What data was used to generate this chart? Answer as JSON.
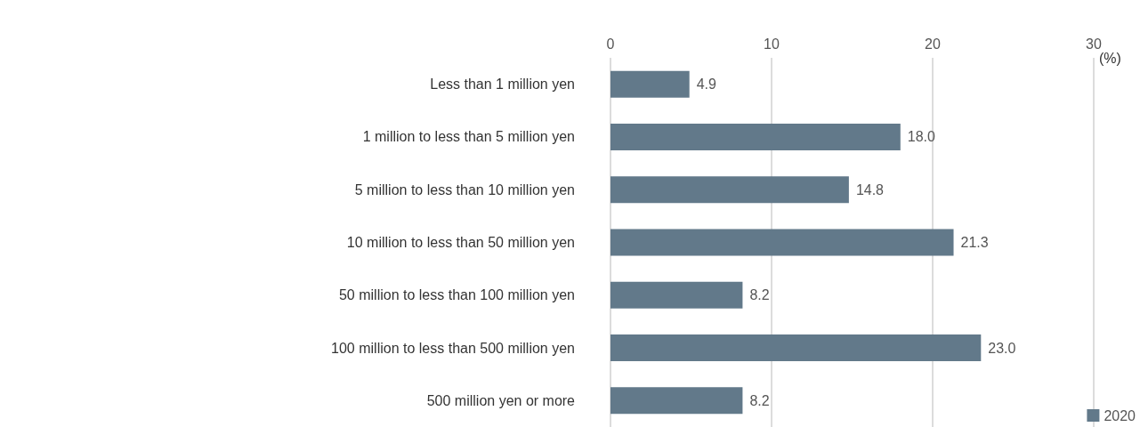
{
  "chart_data": {
    "type": "bar",
    "orientation": "horizontal",
    "xlabel": "(%)",
    "categories": [
      "Less than 1 million yen",
      "1 million to less than 5 million yen",
      "5 million to less than 10 million yen",
      "10 million to less than 50 million yen",
      "50 million to less than 100 million yen",
      "100 million to less than 500 million yen",
      "500 million yen or more"
    ],
    "series": [
      {
        "name": "2020",
        "color": "#62798a",
        "values": [
          4.9,
          18.0,
          14.8,
          21.3,
          8.2,
          23.0,
          8.2
        ],
        "value_labels": [
          "4.9",
          "18.0",
          "14.8",
          "21.3",
          "8.2",
          "23.0",
          "8.2"
        ]
      }
    ],
    "xlim": [
      0,
      30
    ],
    "xticks": [
      0,
      10,
      20,
      30
    ],
    "grid": "x",
    "legend": "bottom right"
  }
}
